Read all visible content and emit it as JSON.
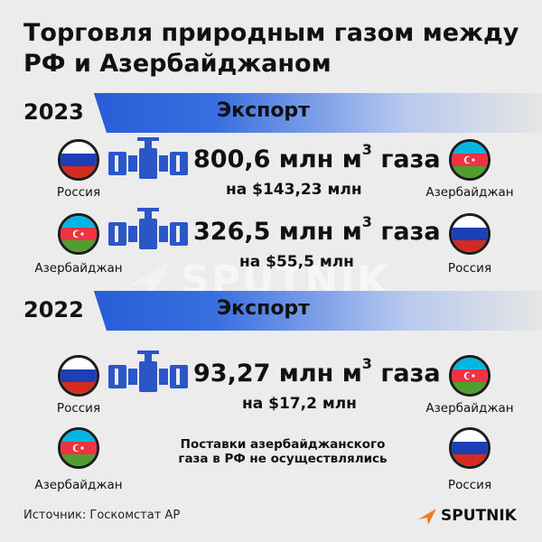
{
  "title": "Торговля природным газом между\nРФ и Азербайджаном",
  "watermark": "SPUTNIK",
  "sections": [
    {
      "year": "2023",
      "label": "Экспорт",
      "rows": [
        {
          "from": "Россия",
          "to": "Азербайджан",
          "amount_pre": "800,6 млн м",
          "amount_sup": "3",
          "amount_post": " газа",
          "price": "на $143,23 млн"
        },
        {
          "from": "Азербайджан",
          "to": "Россия",
          "amount_pre": "326,5 млн м",
          "amount_sup": "3",
          "amount_post": " газа",
          "price": "на $55,5 млн"
        }
      ]
    },
    {
      "year": "2022",
      "label": "Экспорт",
      "rows": [
        {
          "from": "Россия",
          "to": "Азербайджан",
          "amount_pre": "93,27 млн м",
          "amount_sup": "3",
          "amount_post": " газа",
          "price": "на $17,2 млн"
        },
        {
          "from": "Азербайджан",
          "to": "Россия",
          "note": "Поставки азербайджанского\nгаза в РФ не осуществлялись"
        }
      ]
    }
  ],
  "source": "Источник: Госкомстат АР",
  "brand": "SPUTNIK",
  "colors": {
    "band_start": "#1a4fd0",
    "pipe": "#2a56c8",
    "brand_orange": "#f47b20",
    "ru_white": "#ffffff",
    "ru_blue": "#1c3fb5",
    "ru_red": "#d52b1e",
    "az_blue": "#00b5e2",
    "az_red": "#ef3340",
    "az_green": "#509e2f"
  },
  "icons": [
    "russia-flag-icon",
    "azerbaijan-flag-icon",
    "pipeline-valve-icon",
    "sputnik-logo-icon"
  ]
}
